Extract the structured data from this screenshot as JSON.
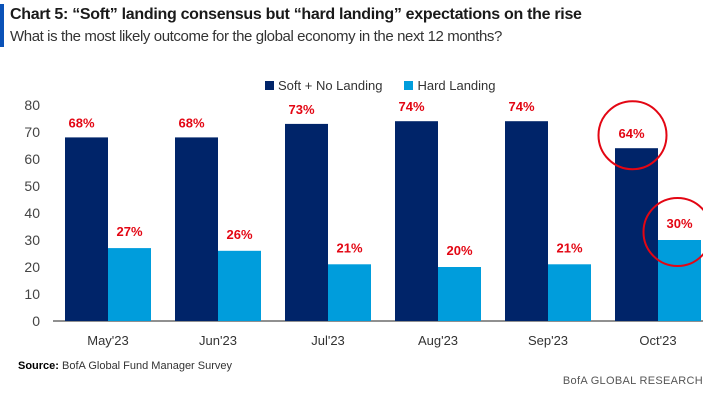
{
  "header": {
    "title": "Chart 5: “Soft” landing consensus but “hard landing” expectations on the rise",
    "subtitle": "What is the most likely outcome for the global economy in the next 12 months?"
  },
  "footer": {
    "source_label": "Source:",
    "source_text": "BofA Global Fund Manager Survey",
    "brand": "BofA GLOBAL RESEARCH"
  },
  "colors": {
    "soft": "#002469",
    "hard": "#009ddc",
    "label": "#e30613",
    "accent": "#0a52b8"
  },
  "chart_data": {
    "type": "bar",
    "title": "Chart 5: “Soft” landing consensus but “hard landing” expectations on the rise",
    "subtitle": "What is the most likely outcome for the global economy in the next 12 months?",
    "xlabel": "",
    "ylabel": "",
    "categories": [
      "May'23",
      "Jun'23",
      "Jul'23",
      "Aug'23",
      "Sep'23",
      "Oct'23"
    ],
    "series": [
      {
        "name": "Soft + No Landing",
        "values": [
          68,
          68,
          73,
          74,
          74,
          64
        ],
        "labels": [
          "68%",
          "68%",
          "73%",
          "74%",
          "74%",
          "64%"
        ]
      },
      {
        "name": "Hard Landing",
        "values": [
          27,
          26,
          21,
          20,
          21,
          30
        ],
        "labels": [
          "27%",
          "26%",
          "21%",
          "20%",
          "21%",
          "30%"
        ]
      }
    ],
    "ylim": [
      0,
      80
    ],
    "yticks": [
      0,
      10,
      20,
      30,
      40,
      50,
      60,
      70,
      80
    ],
    "grid": false,
    "legend": "top-center",
    "annotations": [
      {
        "type": "circle",
        "target": "Soft + No Landing, Oct'23",
        "text": "64%"
      },
      {
        "type": "circle",
        "target": "Hard Landing, Oct'23",
        "text": "30%"
      }
    ]
  }
}
